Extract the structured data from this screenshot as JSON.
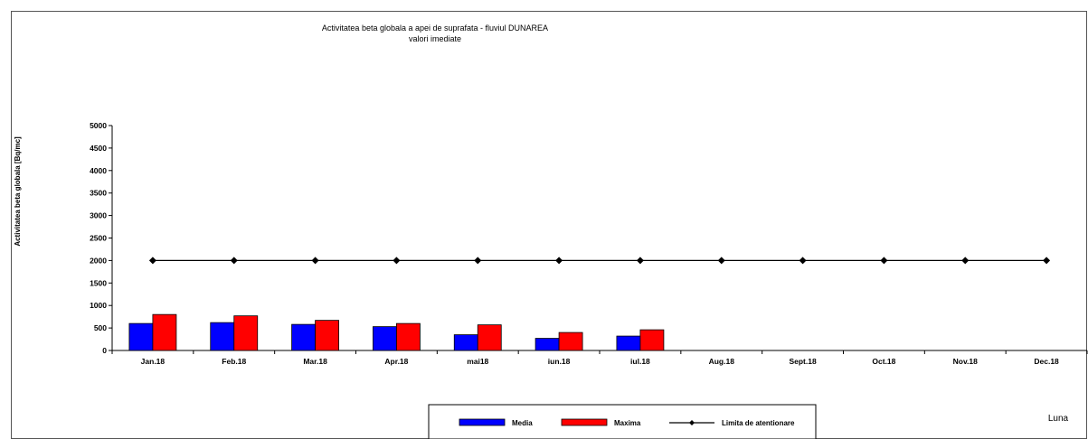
{
  "chart_data": {
    "type": "bar",
    "title": "Activitatea beta globala a apei de suprafata - fluviul DUNAREA",
    "subtitle": "valori imediate",
    "ylabel": "Activitatea beta globala [Bq/mc]",
    "xlabel": "Luna",
    "ylim": [
      0,
      5000
    ],
    "y_ticks": [
      0,
      500,
      1000,
      1500,
      2000,
      2500,
      3000,
      3500,
      4000,
      4500,
      5000
    ],
    "grid": false,
    "legend_position": "bottom-center",
    "categories": [
      "Jan.18",
      "Feb.18",
      "Mar.18",
      "Apr.18",
      "mai18",
      "iun.18",
      "iul.18",
      "Aug.18",
      "Sept.18",
      "Oct.18",
      "Nov.18",
      "Dec.18"
    ],
    "series": [
      {
        "name": "Media",
        "kind": "bar",
        "color": "#0000ff",
        "values": [
          600,
          620,
          580,
          530,
          350,
          270,
          320,
          null,
          null,
          null,
          null,
          null
        ]
      },
      {
        "name": "Maxima",
        "kind": "bar",
        "color": "#ff0000",
        "values": [
          800,
          770,
          670,
          600,
          570,
          400,
          460,
          null,
          null,
          null,
          null,
          null
        ]
      },
      {
        "name": "Limita de atentionare",
        "kind": "line",
        "color": "#000000",
        "values": [
          2000,
          2000,
          2000,
          2000,
          2000,
          2000,
          2000,
          2000,
          2000,
          2000,
          2000,
          2000
        ]
      }
    ]
  }
}
